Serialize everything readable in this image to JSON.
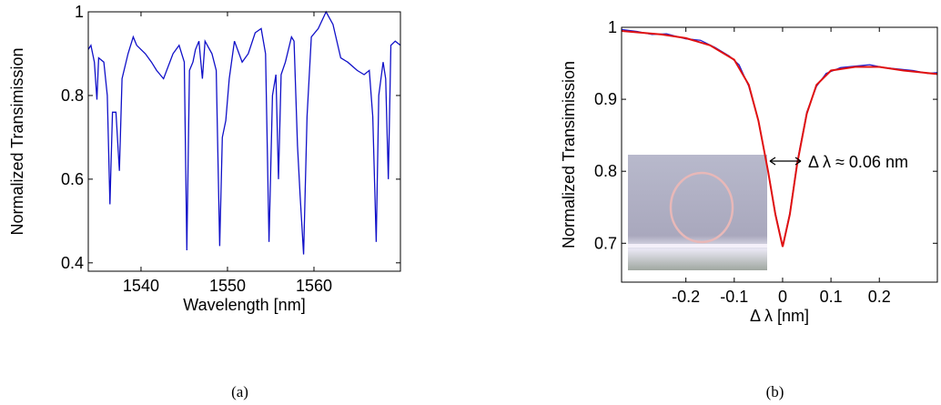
{
  "chart_data": [
    {
      "type": "line",
      "xlabel": "Wavelength [nm]",
      "ylabel": "Normalized Transimission",
      "caption": "(a)",
      "xlim": [
        1533.9,
        1570
      ],
      "ylim": [
        0.38,
        1.0
      ],
      "xticks": [
        1540,
        1550,
        1560
      ],
      "yticks": [
        0.4,
        0.6,
        0.8,
        1
      ],
      "series": [
        {
          "color": "#1010c8",
          "x": [
            1533.9,
            1534.2,
            1534.6,
            1534.9,
            1535.1,
            1535.7,
            1536.1,
            1536.4,
            1536.7,
            1537.1,
            1537.5,
            1537.8,
            1538.5,
            1539.1,
            1539.5,
            1540.5,
            1541.2,
            1541.8,
            1542.6,
            1543.7,
            1544.4,
            1545.0,
            1545.3,
            1545.6,
            1546.0,
            1546.3,
            1546.7,
            1547.1,
            1547.4,
            1548.2,
            1548.7,
            1549.1,
            1549.4,
            1549.8,
            1550.2,
            1550.8,
            1551.7,
            1552.4,
            1553.2,
            1553.9,
            1554.4,
            1554.8,
            1555.2,
            1555.6,
            1555.9,
            1556.2,
            1556.7,
            1557.4,
            1557.7,
            1558.1,
            1558.4,
            1558.8,
            1559.2,
            1559.7,
            1560.5,
            1561.4,
            1562.2,
            1563.1,
            1563.9,
            1565.0,
            1565.8,
            1566.4,
            1566.8,
            1567.2,
            1567.5,
            1568.0,
            1568.3,
            1568.6,
            1568.9,
            1569.4,
            1570.0
          ],
          "values": [
            0.91,
            0.92,
            0.88,
            0.79,
            0.89,
            0.88,
            0.8,
            0.54,
            0.76,
            0.76,
            0.62,
            0.84,
            0.9,
            0.94,
            0.92,
            0.9,
            0.88,
            0.86,
            0.84,
            0.9,
            0.92,
            0.88,
            0.43,
            0.86,
            0.88,
            0.91,
            0.93,
            0.84,
            0.93,
            0.9,
            0.86,
            0.44,
            0.7,
            0.74,
            0.84,
            0.93,
            0.88,
            0.9,
            0.95,
            0.96,
            0.9,
            0.45,
            0.8,
            0.85,
            0.6,
            0.85,
            0.88,
            0.94,
            0.93,
            0.68,
            0.56,
            0.42,
            0.75,
            0.94,
            0.96,
            1.0,
            0.97,
            0.89,
            0.88,
            0.86,
            0.85,
            0.86,
            0.75,
            0.45,
            0.8,
            0.88,
            0.84,
            0.6,
            0.92,
            0.93,
            0.92
          ]
        }
      ]
    },
    {
      "type": "line",
      "xlabel": "Δ λ [nm]",
      "ylabel": "Normalized Transimission",
      "caption": "(b)",
      "annotation": "Δ λ ≈ 0.06 nm",
      "xlim": [
        -0.333,
        0.32
      ],
      "ylim": [
        0.646,
        1.0
      ],
      "xticks": [
        -0.2,
        -0.1,
        0,
        0.1,
        0.2
      ],
      "yticks": [
        0.7,
        0.8,
        0.9,
        1
      ],
      "series": [
        {
          "color": "#2020d0",
          "x": [
            -0.333,
            -0.3,
            -0.27,
            -0.24,
            -0.2,
            -0.17,
            -0.14,
            -0.11,
            -0.09,
            -0.07,
            -0.05,
            -0.03,
            -0.015,
            0,
            0.015,
            0.03,
            0.05,
            0.07,
            0.09,
            0.12,
            0.15,
            0.18,
            0.21,
            0.24,
            0.27,
            0.3,
            0.32
          ],
          "values": [
            0.997,
            0.994,
            0.99,
            0.991,
            0.984,
            0.982,
            0.972,
            0.96,
            0.948,
            0.918,
            0.87,
            0.8,
            0.742,
            0.696,
            0.742,
            0.812,
            0.882,
            0.918,
            0.936,
            0.944,
            0.946,
            0.948,
            0.944,
            0.942,
            0.94,
            0.936,
            0.937
          ]
        },
        {
          "color": "#e01010",
          "x": [
            -0.333,
            -0.25,
            -0.2,
            -0.15,
            -0.1,
            -0.07,
            -0.05,
            -0.03,
            -0.015,
            0,
            0.015,
            0.03,
            0.05,
            0.07,
            0.1,
            0.15,
            0.2,
            0.25,
            0.32
          ],
          "values": [
            0.995,
            0.99,
            0.985,
            0.975,
            0.955,
            0.92,
            0.87,
            0.8,
            0.74,
            0.695,
            0.74,
            0.81,
            0.88,
            0.92,
            0.94,
            0.945,
            0.945,
            0.94,
            0.935
          ]
        }
      ]
    }
  ]
}
